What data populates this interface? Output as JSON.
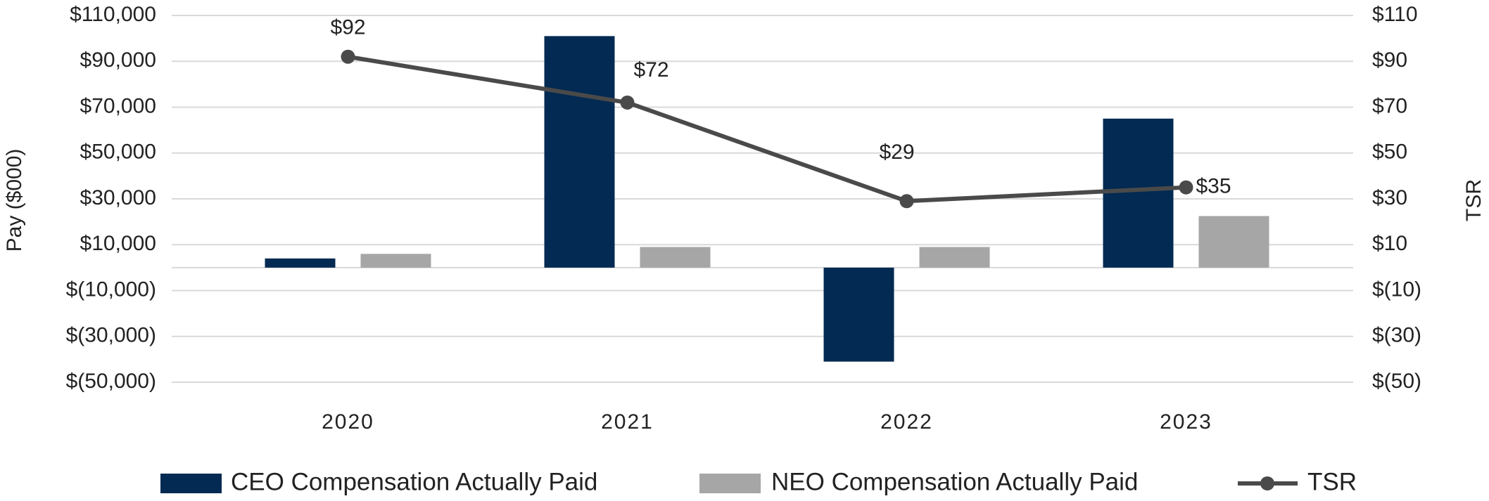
{
  "chart_data": {
    "type": "bar_line",
    "categories": [
      "2020",
      "2021",
      "2022",
      "2023"
    ],
    "y_label": "Pay ($000)",
    "y2_label": "TSR",
    "ylim": [
      -50000,
      110000
    ],
    "yticks": [
      {
        "value": -50000,
        "label": "$(50,000)"
      },
      {
        "value": -30000,
        "label": "$(30,000)"
      },
      {
        "value": -10000,
        "label": "$(10,000)"
      },
      {
        "value": 10000,
        "label": "$10,000"
      },
      {
        "value": 30000,
        "label": "$30,000"
      },
      {
        "value": 50000,
        "label": "$50,000"
      },
      {
        "value": 70000,
        "label": "$70,000"
      },
      {
        "value": 90000,
        "label": "$90,000"
      },
      {
        "value": 110000,
        "label": "$110,000"
      }
    ],
    "y2lim": [
      -50,
      110
    ],
    "y2ticks": [
      {
        "value": -50,
        "label": "$(50)"
      },
      {
        "value": -30,
        "label": "$(30)"
      },
      {
        "value": -10,
        "label": "$(10)"
      },
      {
        "value": 10,
        "label": "$10"
      },
      {
        "value": 30,
        "label": "$30"
      },
      {
        "value": 50,
        "label": "$50"
      },
      {
        "value": 70,
        "label": "$70"
      },
      {
        "value": 90,
        "label": "$90"
      },
      {
        "value": 110,
        "label": "$110"
      }
    ],
    "grid": true,
    "legend": "bottom",
    "series": [
      {
        "name": "CEO Compensation Actually Paid",
        "type": "bar",
        "color": "#022a52",
        "values": [
          4000,
          101000,
          -41000,
          65000
        ]
      },
      {
        "name": "NEO Compensation Actually Paid",
        "type": "bar",
        "color": "#a6a6a6",
        "values": [
          6000,
          9000,
          9000,
          22500
        ]
      },
      {
        "name": "TSR",
        "type": "line",
        "axis": "y2",
        "color": "#4a4a4a",
        "values": [
          92,
          72,
          29,
          35
        ],
        "value_labels": [
          "$92",
          "$72",
          "$29",
          "$35"
        ]
      }
    ]
  }
}
